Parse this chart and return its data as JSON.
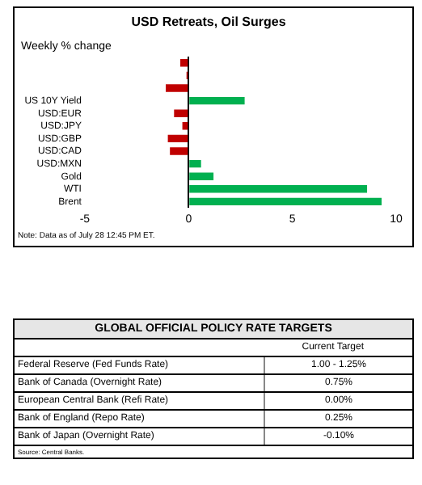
{
  "chart_data": [
    {
      "type": "bar",
      "orientation": "horizontal",
      "title": "USD Retreats, Oil Surges",
      "subtitle": "Weekly % change",
      "categories": [
        null,
        null,
        null,
        "US 10Y Yield",
        "USD:EUR",
        "USD:JPY",
        "USD:GBP",
        "USD:CAD",
        "USD:MXN",
        "Gold",
        "WTI",
        "Brent"
      ],
      "values": [
        -0.4,
        -0.1,
        -1.1,
        2.7,
        -0.7,
        -0.3,
        -1.0,
        -0.9,
        0.6,
        1.2,
        8.6,
        9.3
      ],
      "colors": [
        "#c00000",
        "#c00000",
        "#c00000",
        "#00b050",
        "#c00000",
        "#c00000",
        "#c00000",
        "#c00000",
        "#00b050",
        "#00b050",
        "#00b050",
        "#00b050"
      ],
      "xlim": [
        -5,
        10
      ],
      "xticks": [
        -5,
        0,
        5,
        10
      ],
      "legend": false,
      "annotations": [
        "Note: Data as of July 28 12:45 PM ET."
      ]
    },
    {
      "type": "other",
      "title": "GLOBAL OFFICIAL POLICY RATE TARGETS",
      "subtitle": "Current Target",
      "categories": [
        "Federal Reserve (Fed Funds Rate)",
        "Bank of Canada (Overnight Rate)",
        "European Central Bank (Refi Rate)",
        "Bank of England (Repo Rate)",
        "Bank of Japan (Overnight Rate)"
      ],
      "value_labels": [
        "1.00 - 1.25%",
        "0.75%",
        "0.00%",
        "0.25%",
        "-0.10%"
      ],
      "annotations": [
        "Source: Central Banks."
      ]
    }
  ]
}
